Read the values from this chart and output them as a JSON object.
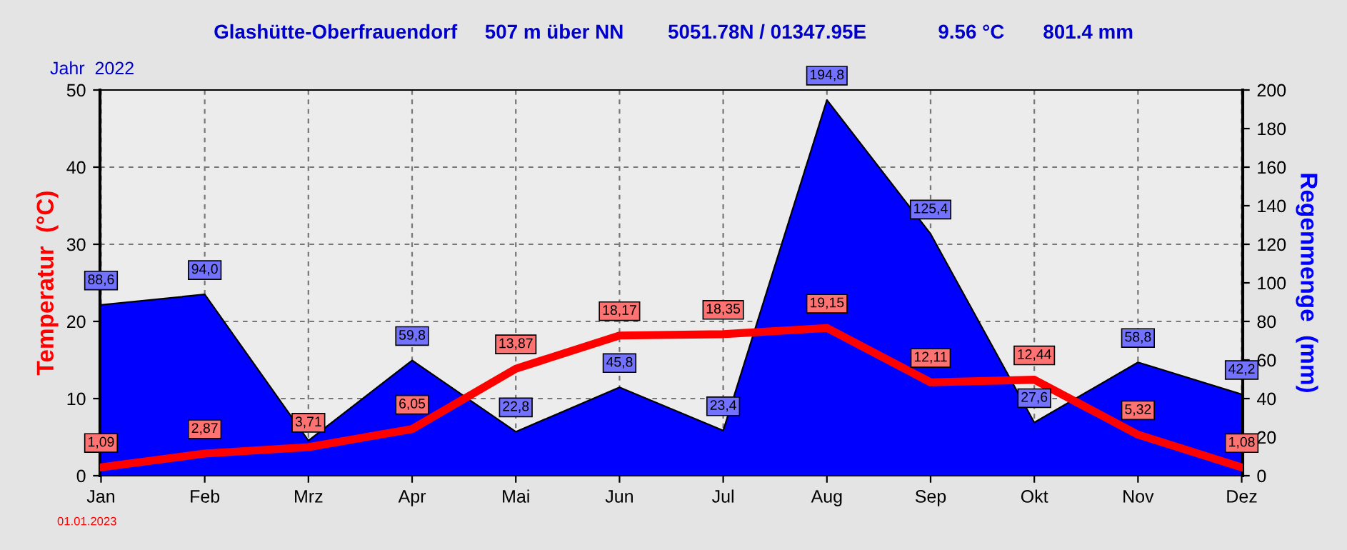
{
  "chart_data": {
    "type": "line",
    "title": "Glashütte-Oberfrauendorf     507 m über NN        5051.78N / 01347.95E             9.56 °C       801.4 mm",
    "subtitle": "Jahr  2022",
    "ylabel": "Temperatur  (°C)",
    "y2label": "Regenmenge  (mm)",
    "annotations": [
      "01.01.2023"
    ],
    "categories": [
      "Jan",
      "Feb",
      "Mrz",
      "Apr",
      "Mai",
      "Jun",
      "Jul",
      "Aug",
      "Sep",
      "Okt",
      "Nov",
      "Dez"
    ],
    "series": [
      {
        "type": "area",
        "axis": "y2",
        "color": "#0000ff",
        "values": [
          88.6,
          94.0,
          18.2,
          59.8,
          22.8,
          45.8,
          23.4,
          194.8,
          125.4,
          27.6,
          58.8,
          42.2
        ],
        "value_labels": [
          "88,6",
          "94,0",
          null,
          "59,8",
          "22,8",
          "45,8",
          "23,4",
          "194,8",
          "125,4",
          "27,6",
          "58,8",
          "42,2"
        ]
      },
      {
        "axis": "y",
        "color": "#ff0000",
        "values": [
          1.09,
          2.87,
          3.71,
          6.05,
          13.87,
          18.17,
          18.35,
          19.15,
          12.11,
          12.44,
          5.32,
          1.08
        ],
        "value_labels": [
          "1,09",
          "2,87",
          "3,71",
          "6,05",
          "13,87",
          "18,17",
          "18,35",
          "19,15",
          "12,11",
          "12,44",
          "5,32",
          "1,08"
        ]
      }
    ],
    "ylim": [
      0,
      50
    ],
    "yticks": [
      0,
      10,
      20,
      30,
      40,
      50
    ],
    "y2lim": [
      0,
      200
    ],
    "y2ticks": [
      0,
      20,
      40,
      60,
      80,
      100,
      120,
      140,
      160,
      180,
      200
    ],
    "grid": true,
    "legend": false
  }
}
